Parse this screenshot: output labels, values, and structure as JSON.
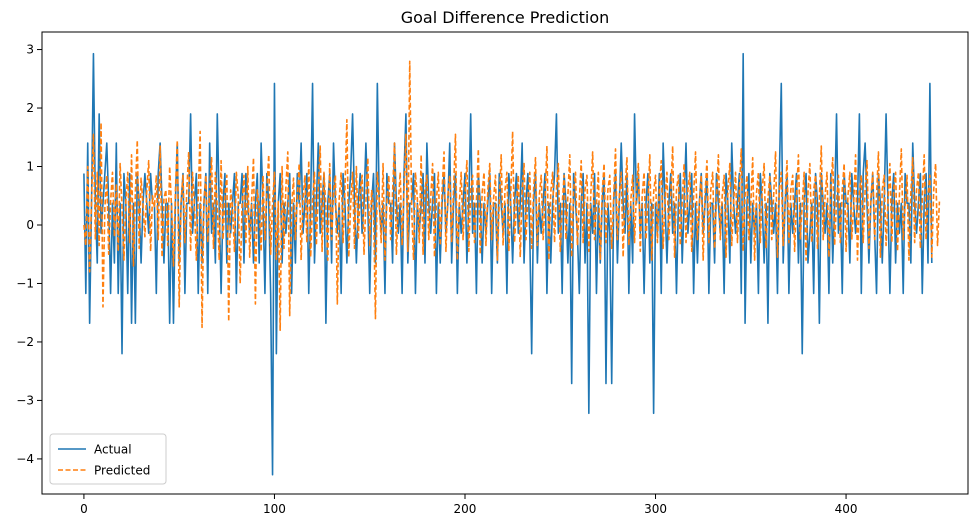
{
  "chart_data": {
    "type": "line",
    "title": "Goal Difference Prediction",
    "xlabel": "",
    "ylabel": "",
    "xlim": [
      -22,
      464
    ],
    "ylim": [
      -4.6,
      3.3
    ],
    "xticks": [
      0,
      100,
      200,
      300,
      400
    ],
    "yticks": [
      -4,
      -3,
      -2,
      -1,
      0,
      1,
      2,
      3
    ],
    "grid": false,
    "legend_position": "lower-left",
    "series": [
      {
        "name": "Actual",
        "color": "#1f77b4",
        "style": "solid",
        "values": [
          0.88,
          -1.17,
          1.4,
          -1.68,
          0.37,
          2.93,
          0.37,
          -0.65,
          1.9,
          -0.14,
          0.37,
          0.88,
          1.4,
          0.37,
          -1.17,
          0.37,
          -0.65,
          1.4,
          -1.17,
          0.37,
          -2.2,
          0.88,
          0.37,
          -1.17,
          0.88,
          -1.68,
          0.37,
          -1.68,
          0.88,
          0.37,
          -0.65,
          0.37,
          0.88,
          0.37,
          -0.14,
          0.88,
          0.37,
          0.37,
          -1.17,
          0.88,
          1.4,
          0.37,
          -0.65,
          0.37,
          0.37,
          -1.68,
          0.37,
          -1.68,
          0.37,
          1.4,
          -0.65,
          0.37,
          0.88,
          -1.17,
          0.37,
          0.37,
          1.9,
          -0.14,
          0.37,
          0.88,
          -1.17,
          0.37,
          -0.65,
          0.37,
          0.88,
          -1.17,
          1.4,
          -0.14,
          0.37,
          -0.65,
          1.9,
          0.37,
          -1.17,
          0.37,
          0.88,
          -0.65,
          0.37,
          -0.14,
          0.37,
          0.88,
          -1.17,
          0.37,
          0.37,
          0.88,
          -0.65,
          0.88,
          0.37,
          -0.14,
          0.37,
          -0.65,
          0.37,
          0.88,
          -0.65,
          1.4,
          0.37,
          -1.17,
          0.88,
          0.37,
          -1.17,
          -4.27,
          2.42,
          -2.2,
          0.37,
          0.88,
          -0.65,
          0.37,
          -0.14,
          0.37,
          0.88,
          -1.17,
          0.37,
          -0.65,
          0.88,
          0.37,
          1.4,
          -0.14,
          0.37,
          0.88,
          -1.17,
          0.37,
          2.42,
          -0.65,
          0.37,
          1.4,
          -0.14,
          0.37,
          0.88,
          -1.68,
          0.37,
          0.88,
          -0.65,
          1.4,
          0.37,
          -0.14,
          0.37,
          -1.17,
          0.88,
          0.37,
          -0.65,
          0.37,
          0.88,
          1.9,
          0.37,
          -0.65,
          0.37,
          0.88,
          -0.14,
          0.37,
          1.4,
          0.37,
          -1.17,
          0.37,
          0.88,
          -0.65,
          2.42,
          0.37,
          -0.14,
          0.37,
          -1.17,
          0.88,
          0.37,
          0.37,
          -0.65,
          1.4,
          0.37,
          -0.14,
          0.37,
          -1.17,
          0.88,
          1.9,
          -0.65,
          0.37,
          0.37,
          0.88,
          -1.17,
          0.37,
          -0.14,
          0.37,
          0.88,
          -0.65,
          1.4,
          0.37,
          -0.14,
          0.37,
          0.88,
          -1.17,
          0.37,
          -0.65,
          0.37,
          0.88,
          -0.14,
          0.37,
          1.4,
          -0.65,
          0.37,
          0.88,
          -1.17,
          0.37,
          -0.14,
          0.37,
          0.88,
          -0.65,
          0.37,
          1.9,
          -0.14,
          0.37,
          -1.17,
          0.88,
          0.37,
          -0.65,
          0.37,
          -0.14,
          0.37,
          0.88,
          -1.17,
          0.37,
          0.37,
          -0.65,
          0.88,
          0.37,
          -0.14,
          0.37,
          -1.17,
          0.88,
          0.37,
          -0.65,
          0.37,
          0.88,
          -0.14,
          0.37,
          1.4,
          -0.65,
          0.37,
          0.88,
          -0.14,
          -2.2,
          0.37,
          0.88,
          -0.65,
          0.37,
          -0.14,
          0.37,
          0.88,
          -1.17,
          0.37,
          -0.65,
          0.37,
          0.88,
          1.9,
          -0.14,
          0.37,
          -1.17,
          0.88,
          0.37,
          -0.65,
          0.37,
          -2.71,
          0.88,
          0.37,
          -0.14,
          -1.17,
          0.37,
          0.88,
          -0.65,
          0.37,
          -3.22,
          0.37,
          -0.14,
          0.88,
          -1.17,
          0.37,
          -0.65,
          0.37,
          0.88,
          -2.71,
          0.37,
          -0.14,
          -2.71,
          0.37,
          0.88,
          -0.65,
          0.37,
          1.4,
          0.37,
          -0.14,
          0.88,
          -1.17,
          0.37,
          -0.65,
          1.9,
          0.37,
          0.88,
          -0.14,
          0.37,
          -1.17,
          0.37,
          0.88,
          -0.65,
          0.37,
          -3.22,
          0.37,
          -0.14,
          0.88,
          -1.17,
          1.4,
          0.37,
          -0.65,
          0.37,
          0.88,
          -0.14,
          0.37,
          -1.17,
          0.37,
          0.88,
          -0.65,
          0.37,
          1.4,
          -0.14,
          0.37,
          0.88,
          -1.17,
          0.37,
          -0.65,
          0.37,
          0.88,
          -0.14,
          0.37,
          0.88,
          -1.17,
          0.37,
          0.37,
          -0.65,
          0.88,
          0.37,
          -0.14,
          0.37,
          -1.17,
          0.88,
          0.37,
          -0.65,
          1.4,
          0.37,
          -0.14,
          0.37,
          0.88,
          -1.17,
          2.93,
          -1.68,
          0.37,
          0.88,
          -0.65,
          0.37,
          -0.14,
          0.37,
          -1.17,
          0.88,
          0.37,
          -0.65,
          0.37,
          -1.68,
          0.88,
          0.37,
          -0.14,
          0.37,
          -1.17,
          0.88,
          2.42,
          -0.65,
          0.37,
          0.88,
          -1.17,
          0.37,
          -0.14,
          0.37,
          0.88,
          -0.65,
          0.37,
          -2.2,
          0.37,
          0.88,
          -0.65,
          -0.14,
          0.37,
          -1.17,
          0.88,
          0.37,
          -1.68,
          0.88,
          0.37,
          -0.14,
          0.37,
          -1.17,
          0.88,
          -0.65,
          0.37,
          1.9,
          -0.14,
          0.37,
          -1.17,
          0.88,
          0.37,
          0.37,
          -0.65,
          0.88,
          0.37,
          -0.14,
          0.37,
          1.9,
          -1.17,
          0.88,
          1.4,
          0.37,
          -0.65,
          0.37,
          0.88,
          -0.14,
          -1.17,
          0.88,
          0.37,
          -0.65,
          0.37,
          1.9,
          0.37,
          -1.17,
          0.37,
          0.88,
          -0.65,
          0.37,
          -0.14,
          0.37,
          -1.17,
          0.88,
          0.37,
          0.37,
          -0.65,
          1.4,
          0.37,
          -0.14,
          0.37,
          0.88,
          -1.17,
          0.37,
          0.88,
          -0.65,
          2.42,
          -0.65
        ]
      },
      {
        "name": "Predicted",
        "color": "#ff7f0e",
        "style": "dashed",
        "values": [
          0.0,
          -0.35,
          1.0,
          -0.8,
          0.45,
          1.55,
          -0.25,
          0.9,
          -0.35,
          1.75,
          -1.4,
          0.3,
          0.85,
          -0.5,
          0.4,
          0.9,
          -0.2,
          0.7,
          -0.45,
          1.05,
          0.3,
          -0.6,
          0.4,
          0.9,
          -0.3,
          1.2,
          -0.7,
          0.55,
          1.45,
          -0.4,
          0.8,
          0.35,
          -0.2,
          0.6,
          1.1,
          -0.45,
          0.5,
          0.3,
          0.85,
          -0.25,
          1.35,
          -0.55,
          0.45,
          0.6,
          -0.35,
          1.0,
          0.3,
          -0.7,
          0.55,
          1.45,
          -1.4,
          0.4,
          0.85,
          -0.3,
          0.6,
          1.25,
          -0.45,
          0.9,
          0.35,
          -0.6,
          0.5,
          1.6,
          -1.75,
          0.4,
          0.85,
          -0.3,
          0.6,
          1.15,
          -0.4,
          0.9,
          0.3,
          -0.6,
          1.1,
          -0.25,
          0.5,
          0.85,
          -1.65,
          0.6,
          0.3,
          -0.45,
          0.9,
          0.5,
          -1.0,
          0.35,
          0.85,
          -0.3,
          1.0,
          -0.55,
          0.4,
          1.15,
          -1.35,
          0.6,
          0.3,
          -0.45,
          0.85,
          -0.25,
          0.6,
          1.2,
          -0.5,
          0.35,
          0.9,
          -0.6,
          0.4,
          -1.8,
          1.0,
          -0.4,
          0.65,
          1.25,
          -1.55,
          0.3,
          0.8,
          -0.25,
          0.5,
          1.05,
          -0.6,
          0.45,
          0.85,
          -0.3,
          1.1,
          -0.55,
          0.4,
          0.9,
          -0.35,
          0.6,
          1.35,
          -0.45,
          0.9,
          0.3,
          -0.6,
          1.05,
          -0.25,
          0.55,
          0.85,
          -1.35,
          0.45,
          0.9,
          -0.3,
          0.6,
          1.8,
          -0.55,
          0.35,
          0.9,
          -0.4,
          1.0,
          -0.25,
          0.6,
          0.85,
          -0.5,
          0.4,
          1.15,
          -0.35,
          0.6,
          0.3,
          -1.6,
          0.9,
          0.45,
          -0.3,
          1.05,
          -0.6,
          0.4,
          0.85,
          -0.25,
          0.55,
          1.4,
          -0.5,
          0.35,
          0.9,
          -0.35,
          0.6,
          1.55,
          -0.45,
          2.8,
          0.3,
          -0.6,
          0.9,
          0.45,
          -0.3,
          1.2,
          -0.5,
          0.6,
          0.85,
          -0.25,
          0.45,
          1.05,
          -0.55,
          0.4,
          0.9,
          -0.35,
          0.6,
          1.25,
          -0.45,
          0.5,
          0.85,
          -0.3,
          0.6,
          1.55,
          -0.6,
          0.35,
          0.9,
          -0.25,
          0.5,
          1.1,
          -0.45,
          0.6,
          0.85,
          -0.3,
          0.4,
          1.3,
          -0.5,
          0.55,
          0.9,
          -0.35,
          0.6,
          1.05,
          -0.25,
          0.45,
          0.85,
          -0.6,
          0.4,
          1.2,
          -0.35,
          0.6,
          0.9,
          -0.45,
          0.5,
          1.6,
          -0.3,
          0.35,
          0.85,
          -0.55,
          0.6,
          1.05,
          -0.25,
          0.45,
          0.9,
          -0.4,
          0.6,
          1.15,
          -0.35,
          0.5,
          0.85,
          -0.25,
          0.4,
          1.35,
          -0.6,
          0.55,
          0.9,
          -0.3,
          0.6,
          1.05,
          -0.45,
          0.35,
          0.85,
          -0.25,
          0.5,
          1.2,
          -0.55,
          0.6,
          0.9,
          -0.35,
          0.4,
          1.1,
          -0.3,
          0.6,
          0.85,
          -0.45,
          0.5,
          1.25,
          -0.25,
          0.35,
          0.9,
          -0.6,
          0.55,
          1.05,
          -0.3,
          0.6,
          0.85,
          -0.4,
          0.45,
          1.3,
          -0.25,
          0.5,
          0.9,
          -0.55,
          0.6,
          1.15,
          -0.35,
          0.4,
          0.85,
          -0.3,
          0.6,
          1.05,
          -0.45,
          0.5,
          0.9,
          -0.25,
          0.35,
          1.2,
          -0.6,
          0.55,
          0.85,
          -0.3,
          0.6,
          1.1,
          -0.4,
          0.45,
          0.9,
          -0.25,
          0.5,
          1.35,
          -0.55,
          0.6,
          0.85,
          -0.35,
          0.4,
          1.05,
          -0.3,
          0.6,
          0.9,
          -0.45,
          0.5,
          1.25,
          -0.25,
          0.35,
          0.85,
          -0.6,
          0.55,
          1.1,
          -0.3,
          0.6,
          0.9,
          -0.4,
          0.45,
          1.2,
          -0.25,
          0.5,
          0.85,
          -0.55,
          0.6,
          1.05,
          -0.35,
          0.4,
          0.9,
          -0.3,
          0.6,
          1.3,
          -0.45,
          0.5,
          0.85,
          -0.25,
          0.35,
          1.15,
          -0.6,
          0.55,
          0.9,
          -0.3,
          0.6,
          1.05,
          -0.4,
          0.45,
          0.85,
          -0.25,
          0.5,
          1.25,
          -0.55,
          0.6,
          0.9,
          -0.35,
          0.4,
          1.1,
          -0.3,
          0.6,
          0.85,
          -0.45,
          0.5,
          1.2,
          -0.25,
          0.35,
          0.9,
          -0.6,
          0.55,
          1.05,
          -0.3,
          0.6,
          0.85,
          -0.4,
          0.45,
          1.35,
          -0.25,
          0.5,
          0.9,
          -0.55,
          0.6,
          1.15,
          -0.35,
          0.4,
          0.85,
          -0.3,
          0.6,
          1.05,
          -0.45,
          0.5,
          0.9,
          -0.25,
          0.35,
          1.2,
          -0.6,
          0.55,
          0.85,
          -0.3,
          0.6,
          1.1,
          -0.4,
          0.45,
          0.9,
          -0.25,
          0.5,
          1.25,
          -0.55,
          0.6,
          0.85,
          -0.35,
          0.4,
          1.05,
          -0.3,
          0.6,
          0.9,
          -0.45,
          0.5,
          1.3,
          -0.25,
          0.35,
          0.85,
          -0.6,
          0.55,
          1.15,
          -0.3,
          0.6,
          0.9,
          -0.4,
          0.45,
          1.2,
          -0.25,
          0.5,
          0.85,
          -0.55,
          0.6,
          1.05,
          -0.35,
          0.4
        ]
      }
    ]
  }
}
